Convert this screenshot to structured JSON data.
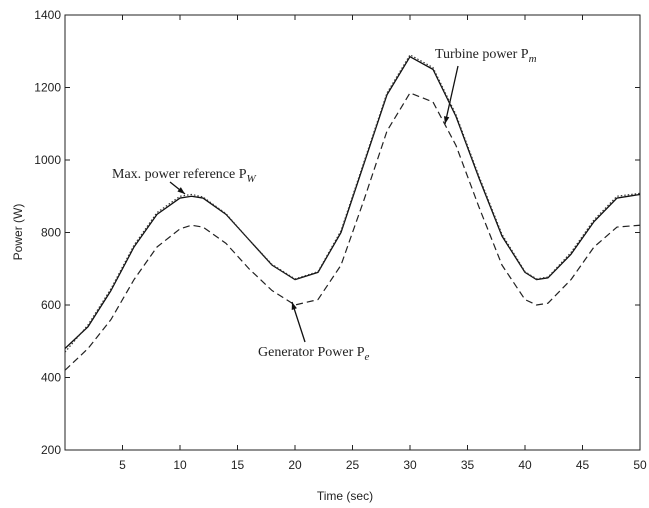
{
  "chart_data": {
    "type": "line",
    "xlabel": "Time (sec)",
    "ylabel": "Power (W)",
    "x": [
      0,
      2,
      4,
      6,
      8,
      10,
      11,
      12,
      14,
      16,
      18,
      20,
      22,
      24,
      26,
      28,
      30,
      32,
      34,
      36,
      38,
      40,
      41,
      42,
      44,
      46,
      48,
      50
    ],
    "series": [
      {
        "name": "Turbine power P",
        "sub": "m",
        "color": "#111111",
        "style": "solid",
        "values": [
          480,
          540,
          640,
          760,
          850,
          895,
          900,
          895,
          850,
          780,
          710,
          670,
          690,
          800,
          990,
          1180,
          1285,
          1250,
          1120,
          950,
          790,
          690,
          670,
          675,
          740,
          830,
          895,
          905
        ]
      },
      {
        "name": "Max. power reference P",
        "sub": "W",
        "color": "#333333",
        "style": "dotted",
        "values": [
          470,
          545,
          645,
          765,
          855,
          900,
          905,
          898,
          852,
          780,
          712,
          672,
          692,
          805,
          995,
          1185,
          1290,
          1255,
          1125,
          955,
          795,
          692,
          672,
          677,
          745,
          835,
          900,
          908
        ]
      },
      {
        "name": "Generator Power P",
        "sub": "e",
        "color": "#222222",
        "style": "dashed",
        "values": [
          420,
          480,
          560,
          670,
          760,
          810,
          820,
          815,
          770,
          700,
          640,
          600,
          615,
          710,
          890,
          1080,
          1185,
          1160,
          1040,
          870,
          710,
          615,
          600,
          605,
          670,
          760,
          815,
          820
        ]
      }
    ],
    "xlim": [
      0,
      50
    ],
    "xticks": [
      5,
      10,
      15,
      20,
      25,
      30,
      35,
      40,
      45,
      50
    ],
    "ylim": [
      200,
      1400
    ],
    "yticks": [
      200,
      400,
      600,
      800,
      1000,
      1200,
      1400
    ]
  }
}
